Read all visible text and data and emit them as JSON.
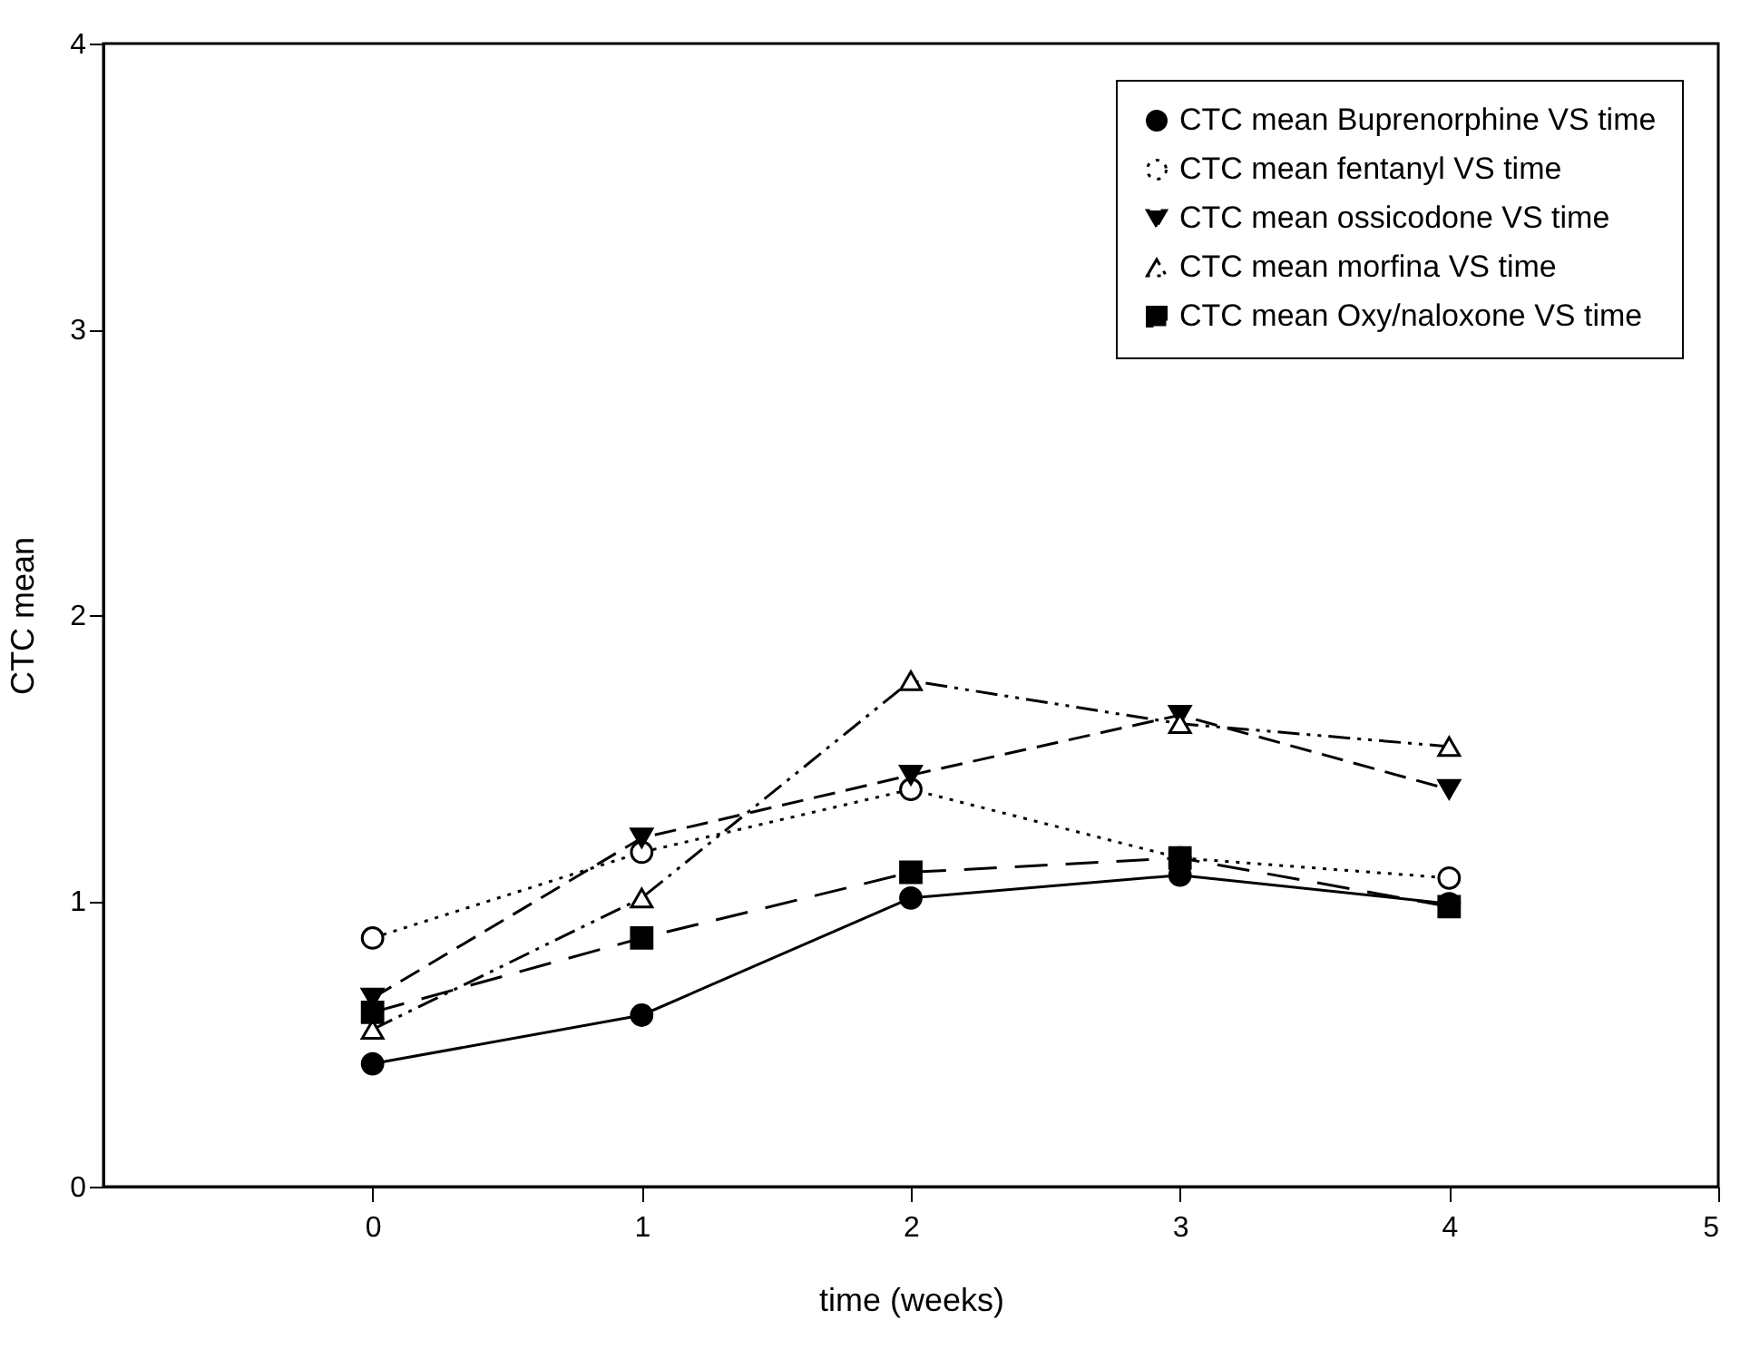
{
  "chart_data": {
    "type": "line",
    "xlabel": "time (weeks)",
    "ylabel": "CTC mean",
    "x": [
      0,
      1,
      2,
      3,
      4
    ],
    "xlim": [
      -1,
      5
    ],
    "xticks": [
      0,
      1,
      2,
      3,
      4,
      5
    ],
    "ylim": [
      0,
      4
    ],
    "yticks": [
      0,
      1,
      2,
      3,
      4
    ],
    "grid": false,
    "legend": "top right",
    "series": [
      {
        "name": "CTC mean Buprenorphine VS time",
        "color": "#000000",
        "marker": "circle",
        "line_style": "solid",
        "values": [
          0.43,
          0.6,
          1.01,
          1.09,
          0.99
        ]
      },
      {
        "name": "CTC mean fentanyl VS time",
        "color": "#000000",
        "marker": "circle-open",
        "line_style": "dotted",
        "values": [
          0.87,
          1.17,
          1.39,
          1.15,
          1.08
        ]
      },
      {
        "name": "CTC mean ossicodone VS time",
        "color": "#000000",
        "marker": "triangle-down",
        "line_style": "dashed",
        "values": [
          0.66,
          1.22,
          1.44,
          1.65,
          1.39
        ]
      },
      {
        "name": "CTC mean morfina VS time",
        "color": "#000000",
        "marker": "triangle-open",
        "line_style": "dashdot",
        "values": [
          0.55,
          1.01,
          1.77,
          1.62,
          1.54
        ]
      },
      {
        "name": "CTC mean Oxy/naloxone VS time",
        "color": "#000000",
        "marker": "square",
        "line_style": "longdash",
        "values": [
          0.61,
          0.87,
          1.1,
          1.15,
          0.98
        ]
      }
    ]
  }
}
